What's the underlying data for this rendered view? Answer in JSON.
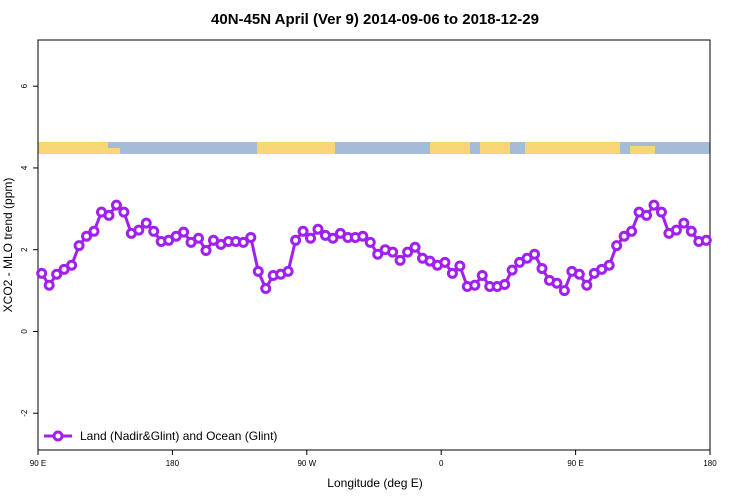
{
  "chart_data": {
    "type": "line",
    "title": "40N-45N April (Ver 9)   2014-09-06 to 2018-12-29",
    "x_label": "Longitude (deg E)",
    "y_label": "XCO2 - MLO trend (ppm)",
    "xlim": [
      90,
      540
    ],
    "ylim": [
      -2.9,
      7.13
    ],
    "xticks": [
      {
        "value": 90,
        "label": "90 E"
      },
      180,
      {
        "value": 270,
        "label": "90 W"
      },
      {
        "value": 360,
        "label": "0"
      },
      {
        "value": 450,
        "label": "90 E"
      },
      {
        "value": 540,
        "label": "180"
      }
    ],
    "yticks": [
      -2,
      0,
      2,
      4,
      6
    ],
    "legend": "bottom-left",
    "x": [
      92.5,
      97.5,
      102.5,
      107.5,
      112.5,
      117.5,
      122.5,
      127.5,
      132.5,
      137.5,
      142.5,
      147.5,
      152.5,
      157.5,
      162.5,
      167.5,
      172.5,
      177.5,
      182.5,
      187.5,
      192.5,
      197.5,
      202.5,
      207.5,
      212.5,
      217.5,
      222.5,
      227.5,
      232.5,
      237.5,
      242.5,
      247.5,
      252.5,
      257.5,
      262.5,
      267.5,
      272.5,
      277.5,
      282.5,
      287.5,
      292.5,
      297.5,
      302.5,
      307.5,
      312.5,
      317.5,
      322.5,
      327.5,
      332.5,
      337.5,
      342.5,
      347.5,
      352.5,
      357.5,
      362.5,
      367.5,
      372.5,
      377.5,
      382.5,
      387.5,
      392.5,
      397.5,
      402.5,
      407.5,
      412.5,
      417.5,
      422.5,
      427.5,
      432.5,
      437.5,
      442.5,
      447.5,
      452.5,
      457.5,
      462.5,
      467.5,
      472.5,
      477.5,
      482.5,
      487.5,
      492.5,
      497.5,
      502.5,
      507.5,
      512.5,
      517.5,
      522.5,
      527.5,
      532.5,
      537.5
    ],
    "series": [
      {
        "name": "Land (Nadir&Glint) and Ocean (Glint)",
        "color": "#a020f0",
        "values": [
          1.42,
          1.13,
          1.4,
          1.52,
          1.62,
          2.1,
          2.33,
          2.45,
          2.92,
          2.84,
          3.09,
          2.92,
          2.4,
          2.48,
          2.65,
          2.45,
          2.2,
          2.23,
          2.33,
          2.43,
          2.18,
          2.28,
          1.98,
          2.23,
          2.13,
          2.2,
          2.2,
          2.18,
          2.3,
          1.47,
          1.05,
          1.37,
          1.4,
          1.47,
          2.23,
          2.45,
          2.28,
          2.5,
          2.35,
          2.28,
          2.4,
          2.3,
          2.3,
          2.33,
          2.18,
          1.89,
          2.0,
          1.94,
          1.74,
          1.94,
          2.06,
          1.79,
          1.72,
          1.62,
          1.69,
          1.42,
          1.6,
          1.1,
          1.13,
          1.37,
          1.1,
          1.1,
          1.15,
          1.5,
          1.69,
          1.79,
          1.89,
          1.54,
          1.25,
          1.18,
          1.0,
          1.47,
          1.4,
          1.13,
          1.42,
          1.52,
          1.62,
          2.1,
          2.33,
          2.45,
          2.92,
          2.84,
          3.09,
          2.92,
          2.4,
          2.48,
          2.65,
          2.45,
          2.2,
          2.23
        ]
      }
    ]
  }
}
